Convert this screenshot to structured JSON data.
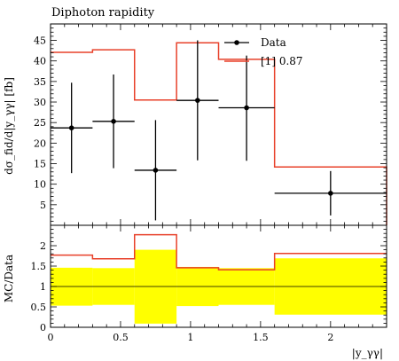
{
  "chart_data": {
    "type": "histogram-with-ratio",
    "title": "Diphoton rapidity",
    "xlabel": "|y_γγ|",
    "xlim": [
      0,
      2.4
    ],
    "x_ticks": [
      "0",
      "0.5",
      "1",
      "1.5",
      "2"
    ],
    "main": {
      "ylabel": "dσ_fid/d|y_γγ| [fb]",
      "ylim": [
        0,
        49
      ],
      "y_ticks": [
        "5",
        "10",
        "15",
        "20",
        "25",
        "30",
        "35",
        "40",
        "45"
      ],
      "bins": [
        [
          0,
          0.3
        ],
        [
          0.3,
          0.6
        ],
        [
          0.6,
          0.9
        ],
        [
          0.9,
          1.2
        ],
        [
          1.2,
          1.6
        ],
        [
          1.6,
          2.4
        ]
      ],
      "series": [
        {
          "name": "Data",
          "style": "points-with-errors",
          "x": [
            0.15,
            0.45,
            0.75,
            1.05,
            1.4,
            2.0
          ],
          "values": [
            23.7,
            25.3,
            13.4,
            30.4,
            28.6,
            7.8
          ],
          "err_up": [
            11.0,
            11.4,
            12.2,
            14.6,
            12.7,
            5.4
          ],
          "err_down": [
            11.0,
            11.4,
            12.2,
            14.6,
            12.9,
            5.4
          ],
          "color": "#000000"
        },
        {
          "name": "[1] 0.87",
          "style": "step",
          "values": [
            42.1,
            42.7,
            30.5,
            44.4,
            40.4,
            14.2
          ],
          "color": "#e8402a"
        }
      ]
    },
    "ratio": {
      "ylabel": "MC/Data",
      "ylim": [
        0,
        2.5
      ],
      "y_ticks": [
        "0",
        "0.5",
        "1",
        "1.5",
        "2"
      ],
      "reference_line": 1,
      "band_color": "#ffff00",
      "band": [
        [
          0.53,
          1.46
        ],
        [
          0.55,
          1.45
        ],
        [
          0.09,
          1.9
        ],
        [
          0.52,
          1.48
        ],
        [
          0.55,
          1.45
        ],
        [
          0.31,
          1.69
        ]
      ],
      "mc_ratio": [
        1.77,
        1.68,
        2.27,
        1.46,
        1.41,
        1.81
      ],
      "mc_color": "#e8402a"
    },
    "legend_position": "top-right"
  }
}
